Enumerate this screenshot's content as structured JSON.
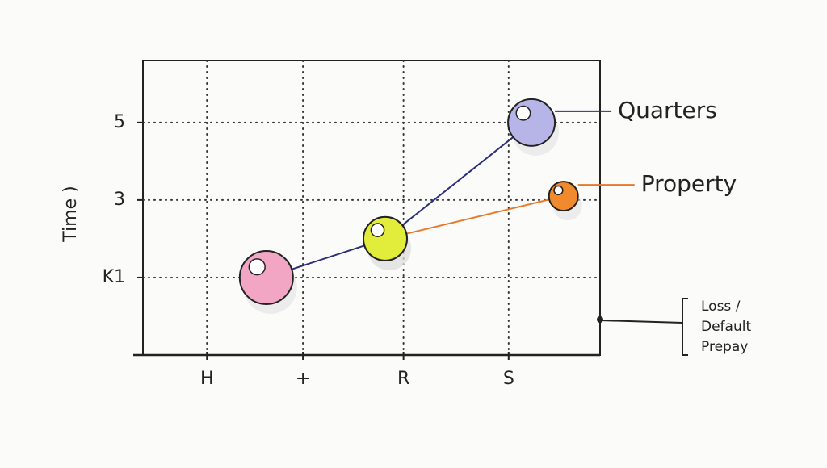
{
  "chart_data": {
    "type": "line",
    "y_label": "Time )",
    "xlim": [
      0,
      10
    ],
    "xticks": [
      {
        "value": 1.4,
        "label": "H"
      },
      {
        "value": 3.5,
        "label": "+"
      },
      {
        "value": 5.7,
        "label": "R"
      },
      {
        "value": 8,
        "label": "S"
      }
    ],
    "ylim": [
      -1,
      6.6
    ],
    "yticks": [
      {
        "value": 1,
        "label": "K1"
      },
      {
        "value": 3,
        "label": "3"
      },
      {
        "value": 5,
        "label": "5"
      }
    ],
    "grid": true,
    "series": [
      {
        "name": "Quarters",
        "color": "#2a2f7a",
        "x": [
          2.7,
          5.3,
          8.5
        ],
        "values": [
          1,
          2,
          5
        ],
        "sizes": [
          33,
          27,
          29
        ],
        "point_colors": [
          "#f2a6c4",
          "#e2ec3a",
          "#b7b5e8"
        ]
      },
      {
        "name": "Property",
        "color": "#e8792a",
        "x": [
          5.3,
          9.2
        ],
        "values": [
          2,
          3.1
        ],
        "sizes": [
          27,
          18
        ],
        "point_colors": [
          "#e2ec3a",
          "#f08a2c"
        ]
      }
    ],
    "annotation": [
      "Loss /",
      "Default",
      "Prepay"
    ]
  }
}
